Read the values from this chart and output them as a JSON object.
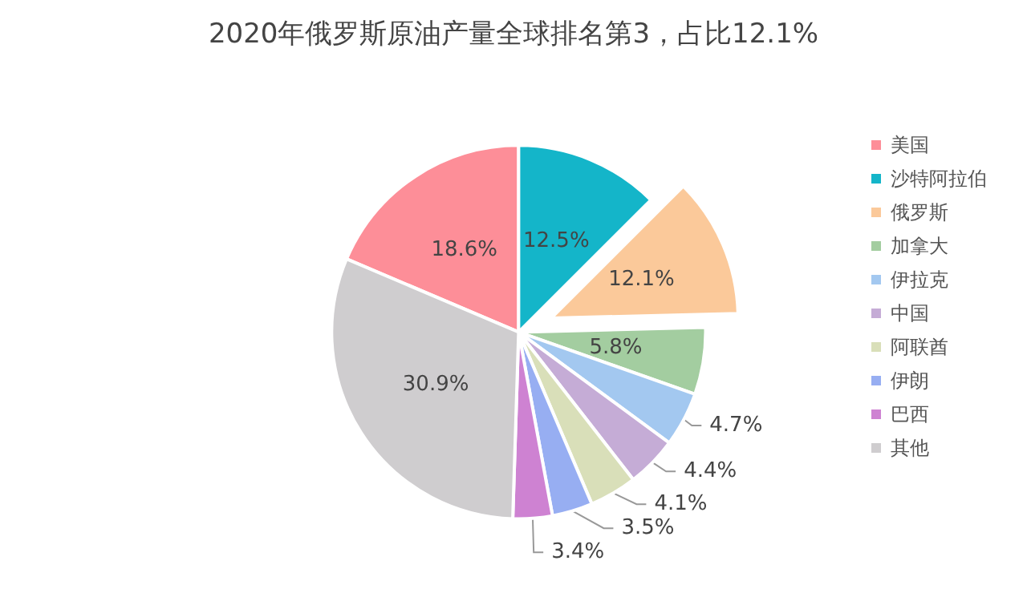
{
  "chart_data": {
    "type": "pie",
    "title": "2020年俄罗斯原油产量全球排名第3，占比12.1%",
    "categories": [
      "美国",
      "沙特阿拉伯",
      "俄罗斯",
      "加拿大",
      "伊拉克",
      "中国",
      "阿联酋",
      "伊朗",
      "巴西",
      "其他"
    ],
    "values": [
      18.6,
      12.5,
      12.1,
      5.8,
      4.7,
      4.4,
      4.1,
      3.5,
      3.4,
      30.9
    ],
    "value_labels": [
      "18.6%",
      "12.5%",
      "12.1%",
      "5.8%",
      "4.7%",
      "4.4%",
      "4.1%",
      "3.5%",
      "3.4%",
      "30.9%"
    ],
    "colors": [
      "#fd8e98",
      "#14b5c9",
      "#fbc99a",
      "#a3cda0",
      "#a3c8f0",
      "#c5acd6",
      "#d9dfb9",
      "#97aef2",
      "#ce82d2",
      "#cfcdcf"
    ],
    "legend": "right"
  }
}
